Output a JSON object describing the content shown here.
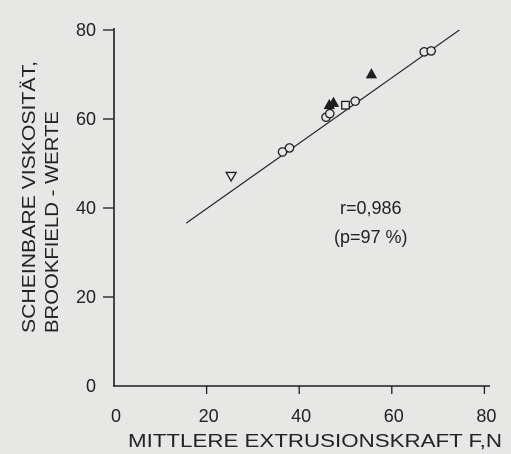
{
  "colors": {
    "paper": "#e7e7e5",
    "ink": "#1e1e1e"
  },
  "chart_data": {
    "type": "scatter",
    "xlabel": "MITTLERE EXTRUSIONSKRAFT F,N",
    "ylabel": [
      "SCHEINBARE VISKOSITÄT,",
      "BROOKFIELD - WERTE"
    ],
    "xlim": [
      0,
      80
    ],
    "ylim": [
      0,
      80
    ],
    "x_ticks": [
      0,
      20,
      40,
      60,
      80
    ],
    "y_ticks": [
      0,
      20,
      40,
      60,
      80
    ],
    "grid": false,
    "annotations": [
      "r=0,986",
      "(p=97 %)"
    ],
    "fit_line": {
      "x": [
        15.6,
        74.6
      ],
      "y": [
        36.6,
        80
      ]
    },
    "series": [
      {
        "marker": "open-circle",
        "points": [
          [
            36.4,
            52.6
          ],
          [
            37.9,
            53.5
          ],
          [
            45.8,
            60.4
          ],
          [
            46.6,
            61.2
          ],
          [
            52.1,
            64.0
          ],
          [
            67.0,
            75.1
          ],
          [
            68.5,
            75.3
          ]
        ]
      },
      {
        "marker": "filled-triangle",
        "points": [
          [
            46.5,
            63.1
          ],
          [
            47.4,
            63.6
          ],
          [
            55.6,
            70.0
          ]
        ]
      },
      {
        "marker": "open-triangle-down",
        "points": [
          [
            25.3,
            47.2
          ]
        ]
      },
      {
        "marker": "open-square",
        "points": [
          [
            50.0,
            63.1
          ]
        ]
      }
    ]
  }
}
